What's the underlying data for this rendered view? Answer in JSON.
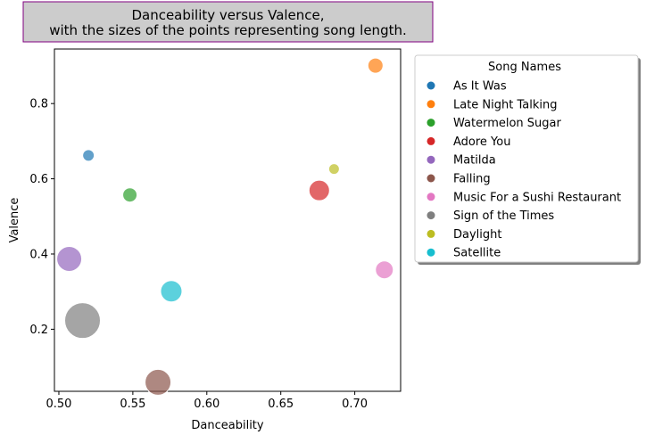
{
  "chart_data": {
    "type": "scatter",
    "title_lines": [
      "Danceability versus Valence,",
      "with the sizes of the points representing song length."
    ],
    "xlabel": "Danceability",
    "ylabel": "Valence",
    "xlim": [
      0.497,
      0.731
    ],
    "ylim": [
      0.035,
      0.945
    ],
    "xticks": [
      {
        "v": 0.5,
        "label": "0.50"
      },
      {
        "v": 0.55,
        "label": "0.55"
      },
      {
        "v": 0.6,
        "label": "0.60"
      },
      {
        "v": 0.65,
        "label": "0.65"
      },
      {
        "v": 0.7,
        "label": "0.70"
      }
    ],
    "yticks": [
      {
        "v": 0.2,
        "label": "0.2"
      },
      {
        "v": 0.4,
        "label": "0.4"
      },
      {
        "v": 0.6,
        "label": "0.6"
      },
      {
        "v": 0.8,
        "label": "0.8"
      }
    ],
    "grid": false,
    "legend": {
      "title": "Song Names",
      "placement": "outside-right"
    },
    "size_encodes": "song length (relative marker radius)",
    "series": [
      {
        "name": "As It Was",
        "color": "#1f77b4",
        "x": 0.52,
        "y": 0.662,
        "size": 6.5
      },
      {
        "name": "Late Night Talking",
        "color": "#ff7f0e",
        "x": 0.714,
        "y": 0.901,
        "size": 8.5
      },
      {
        "name": "Watermelon Sugar",
        "color": "#2ca02c",
        "x": 0.548,
        "y": 0.557,
        "size": 8
      },
      {
        "name": "Adore You",
        "color": "#d62728",
        "x": 0.676,
        "y": 0.569,
        "size": 11.5
      },
      {
        "name": "Matilda",
        "color": "#9467bd",
        "x": 0.507,
        "y": 0.387,
        "size": 14
      },
      {
        "name": "Falling",
        "color": "#8c564b",
        "x": 0.567,
        "y": 0.059,
        "size": 14.5
      },
      {
        "name": "Music For a Sushi Restaurant",
        "color": "#e377c2",
        "x": 0.72,
        "y": 0.358,
        "size": 10
      },
      {
        "name": "Sign of the Times",
        "color": "#7f7f7f",
        "x": 0.516,
        "y": 0.223,
        "size": 20
      },
      {
        "name": "Daylight",
        "color": "#bcbd22",
        "x": 0.686,
        "y": 0.626,
        "size": 6
      },
      {
        "name": "Satellite",
        "color": "#17becf",
        "x": 0.576,
        "y": 0.301,
        "size": 12
      }
    ]
  }
}
